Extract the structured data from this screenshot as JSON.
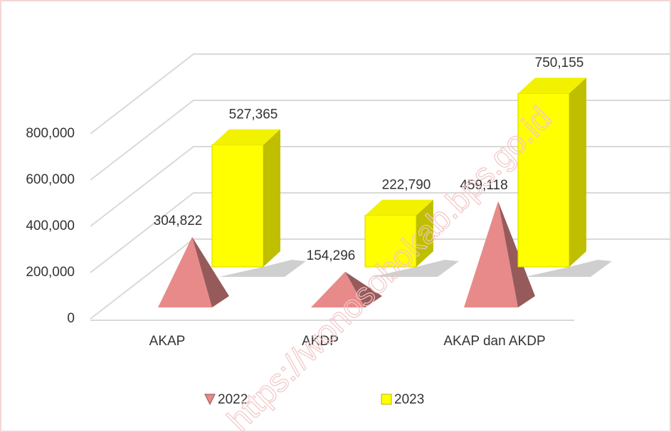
{
  "chart_data": {
    "type": "bar3d",
    "categories": [
      "AKAP",
      "AKDP",
      "AKAP dan AKDP"
    ],
    "series": [
      {
        "name": "2022",
        "color": "#e88a8a",
        "shape": "pyramid",
        "values": [
          304822,
          154296,
          459118
        ],
        "value_labels": [
          "304,822",
          "154,296",
          "459,118"
        ]
      },
      {
        "name": "2023",
        "color": "#ffff00",
        "shape": "box",
        "values": [
          527365,
          222790,
          750155
        ],
        "value_labels": [
          "527,365",
          "222,790",
          "750,155"
        ]
      }
    ],
    "ylim": [
      0,
      800000
    ],
    "yticks": [
      0,
      {
        "value": 200000,
        "label": "200,000"
      },
      {
        "value": 400000,
        "label": "400,000"
      },
      {
        "value": 600000,
        "label": "600,000"
      },
      {
        "value": 800000,
        "label": "800,000"
      }
    ],
    "grid": true,
    "legend": "bottom",
    "watermark": "https://wonosobokab.bps.go.id"
  }
}
